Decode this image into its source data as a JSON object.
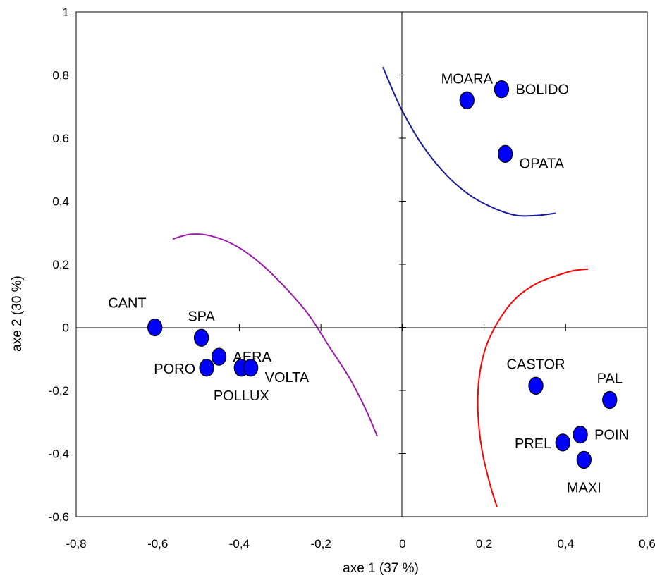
{
  "chart_data": {
    "type": "scatter",
    "title": "",
    "xlabel": "axe 1 (37 %)",
    "ylabel": "axe 2 (30 %)",
    "xlim": [
      -0.8,
      0.6
    ],
    "ylim": [
      -0.6,
      1.0
    ],
    "grid": false,
    "x_ticks": [
      {
        "value": -0.8,
        "label": "-0,8"
      },
      {
        "value": -0.6,
        "label": "-0,6"
      },
      {
        "value": -0.4,
        "label": "-0,4"
      },
      {
        "value": -0.2,
        "label": "-0,2"
      },
      {
        "value": 0,
        "label": "0"
      },
      {
        "value": 0.2,
        "label": "0,2"
      },
      {
        "value": 0.4,
        "label": "0,4"
      },
      {
        "value": 0.6,
        "label": "0,6"
      }
    ],
    "y_ticks": [
      {
        "value": -0.6,
        "label": "-0,6"
      },
      {
        "value": -0.4,
        "label": "-0,4"
      },
      {
        "value": -0.2,
        "label": "-0,2"
      },
      {
        "value": 0,
        "label": "0"
      },
      {
        "value": 0.2,
        "label": "0,2"
      },
      {
        "value": 0.4,
        "label": "0,4"
      },
      {
        "value": 0.6,
        "label": "0,6"
      },
      {
        "value": 0.8,
        "label": "0,8"
      },
      {
        "value": 1.0,
        "label": "1"
      }
    ],
    "marker_color": "#0000ff",
    "points": [
      {
        "label": "CANT",
        "x": -0.607,
        "y": 0.0,
        "label_pos": "above-left"
      },
      {
        "label": "SPA",
        "x": -0.493,
        "y": -0.033,
        "label_pos": "above"
      },
      {
        "label": "AERA",
        "x": -0.45,
        "y": -0.093,
        "label_pos": "right"
      },
      {
        "label": "PORO",
        "x": -0.48,
        "y": -0.128,
        "label_pos": "left"
      },
      {
        "label": "POLLUX",
        "x": -0.395,
        "y": -0.128,
        "label_pos": "below"
      },
      {
        "label": "VOLTA",
        "x": -0.372,
        "y": -0.128,
        "label_pos": "right-below"
      },
      {
        "label": "MOARA",
        "x": 0.158,
        "y": 0.72,
        "label_pos": "above"
      },
      {
        "label": "BOLIDO",
        "x": 0.243,
        "y": 0.755,
        "label_pos": "right"
      },
      {
        "label": "OPATA",
        "x": 0.252,
        "y": 0.55,
        "label_pos": "right-below"
      },
      {
        "label": "CASTOR",
        "x": 0.327,
        "y": -0.185,
        "label_pos": "above"
      },
      {
        "label": "PAL",
        "x": 0.508,
        "y": -0.23,
        "label_pos": "above"
      },
      {
        "label": "PREL",
        "x": 0.393,
        "y": -0.365,
        "label_pos": "left"
      },
      {
        "label": "POIN",
        "x": 0.436,
        "y": -0.34,
        "label_pos": "right"
      },
      {
        "label": "MAXI",
        "x": 0.445,
        "y": -0.42,
        "label_pos": "below"
      }
    ],
    "curves": [
      {
        "name": "",
        "color": "#9c1aa8",
        "points": [
          [
            -0.563,
            0.28
          ],
          [
            -0.52,
            0.295
          ],
          [
            -0.47,
            0.29
          ],
          [
            -0.41,
            0.26
          ],
          [
            -0.35,
            0.205
          ],
          [
            -0.29,
            0.13
          ],
          [
            -0.23,
            0.04
          ],
          [
            -0.18,
            -0.06
          ],
          [
            -0.13,
            -0.16
          ],
          [
            -0.09,
            -0.26
          ],
          [
            -0.062,
            -0.345
          ]
        ]
      },
      {
        "name": "",
        "color": "#1a1a9c",
        "points": [
          [
            -0.048,
            0.825
          ],
          [
            -0.03,
            0.77
          ],
          [
            0.0,
            0.685
          ],
          [
            0.05,
            0.575
          ],
          [
            0.11,
            0.48
          ],
          [
            0.17,
            0.415
          ],
          [
            0.23,
            0.375
          ],
          [
            0.28,
            0.355
          ],
          [
            0.33,
            0.355
          ],
          [
            0.375,
            0.362
          ]
        ]
      },
      {
        "name": "",
        "color": "#ff0000",
        "points": [
          [
            0.455,
            0.185
          ],
          [
            0.42,
            0.18
          ],
          [
            0.38,
            0.165
          ],
          [
            0.33,
            0.14
          ],
          [
            0.28,
            0.095
          ],
          [
            0.24,
            0.03
          ],
          [
            0.205,
            -0.06
          ],
          [
            0.188,
            -0.16
          ],
          [
            0.185,
            -0.27
          ],
          [
            0.195,
            -0.39
          ],
          [
            0.215,
            -0.5
          ],
          [
            0.232,
            -0.57
          ]
        ]
      }
    ]
  }
}
